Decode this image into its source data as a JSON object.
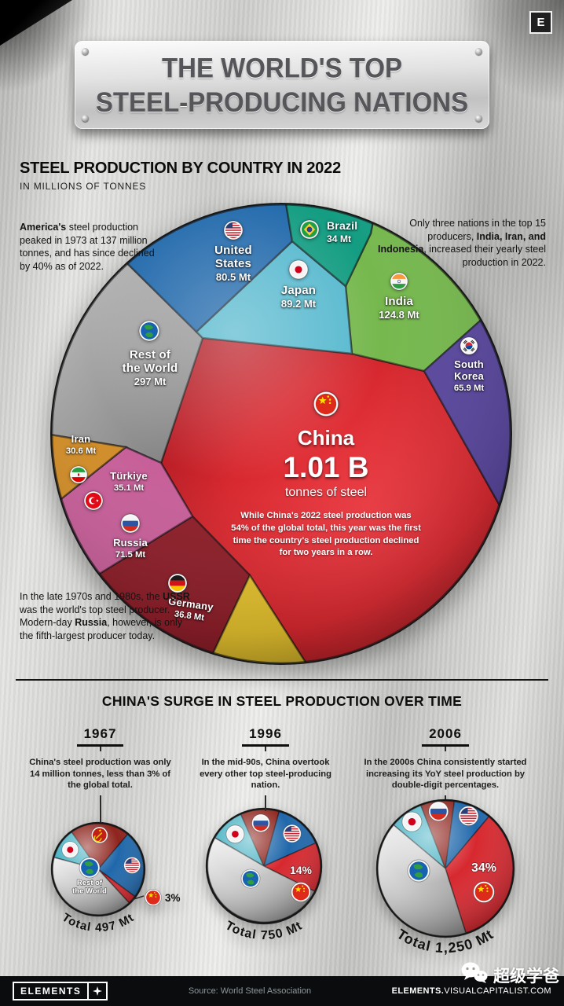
{
  "page": {
    "corner_logo": "E",
    "watermark": "超级学爸"
  },
  "title": {
    "line1": "THE WORLD'S TOP",
    "line2": "STEEL-PRODUCING NATIONS"
  },
  "section1": {
    "heading": "STEEL PRODUCTION BY COUNTRY IN 2022",
    "subheading": "IN MILLIONS OF TONNES",
    "note_america": {
      "bold": "America's",
      "rest": " steel production peaked in 1973 at 137 million tonnes, and has since declined by 40% as of 2022."
    },
    "note_top15": {
      "pre": "Only three nations in the top 15 producers, ",
      "bold": "India, Iran, and Indonesia",
      "post": ", increased their yearly steel production in 2022."
    },
    "note_ussr": {
      "p1": "In the late 1970s and 1980s, the ",
      "b1": "USSR",
      "p2": " was the world's top steel producer. Modern-day ",
      "b2": "Russia",
      "p3": ", however, is only the fifth-largest producer today."
    }
  },
  "china_focus": {
    "name": "China",
    "value": "1.01 B",
    "unit": "tonnes of steel",
    "note_lines": [
      "While China's 2022 steel production was",
      "54% of the global total, this year was the first",
      "time the country's steel production declined",
      "for two years in a row."
    ]
  },
  "chart_data": [
    {
      "type": "voronoi-circle-treemap",
      "title": "Steel production by country in 2022",
      "unit": "millions of tonnes",
      "countries": [
        {
          "name": "China",
          "display": [
            "China"
          ],
          "value": 1010,
          "value_label": "1.01 B",
          "color": "#d7282f",
          "flag": "china"
        },
        {
          "name": "Rest of the World",
          "display": [
            "Rest of",
            "the World"
          ],
          "value": 297,
          "value_label": "297 Mt",
          "color": "#a9a9a9",
          "flag": "globe"
        },
        {
          "name": "India",
          "display": [
            "India"
          ],
          "value": 124.8,
          "value_label": "124.8 Mt",
          "color": "#76b84e",
          "flag": "india"
        },
        {
          "name": "Japan",
          "display": [
            "Japan"
          ],
          "value": 89.2,
          "value_label": "89.2 Mt",
          "color": "#55b8ce",
          "flag": "japan"
        },
        {
          "name": "United States",
          "display": [
            "United",
            "States"
          ],
          "value": 80.5,
          "value_label": "80.5 Mt",
          "color": "#2068ab",
          "flag": "us"
        },
        {
          "name": "Russia",
          "display": [
            "Russia"
          ],
          "value": 71.5,
          "value_label": "71.5 Mt",
          "color": "#8c1e29",
          "flag": "russia"
        },
        {
          "name": "South Korea",
          "display": [
            "South",
            "Korea"
          ],
          "value": 65.9,
          "value_label": "65.9 Mt",
          "color": "#5a489e",
          "flag": "skorea"
        },
        {
          "name": "Germany",
          "display": [
            "Germany"
          ],
          "value": 36.8,
          "value_label": "36.8 Mt",
          "color": "#e2bf2d",
          "flag": "germany"
        },
        {
          "name": "Türkiye",
          "display": [
            "Türkiye"
          ],
          "value": 35.1,
          "value_label": "35.1 Mt",
          "color": "#c75f99",
          "flag": "turkiye"
        },
        {
          "name": "Brazil",
          "display": [
            "Brazil"
          ],
          "value": 34,
          "value_label": "34 Mt",
          "color": "#149d82",
          "flag": "brazil"
        },
        {
          "name": "Iran",
          "display": [
            "Iran"
          ],
          "value": 30.6,
          "value_label": "30.6 Mt",
          "color": "#d18d28",
          "flag": "iran"
        }
      ]
    },
    {
      "type": "pie",
      "year": "1967",
      "total_label": "Total 497 Mt",
      "start_angle": 285,
      "segments": [
        {
          "name": "Japan",
          "share": 11,
          "color": "#4fb5c6",
          "flag": "japan"
        },
        {
          "name": "USSR",
          "share": 21,
          "color": "#8e241d",
          "flag": "ussr"
        },
        {
          "name": "United States",
          "share": 24,
          "color": "#2068ab",
          "flag": "us"
        },
        {
          "name": "China",
          "share": 3,
          "color": "#d7282f",
          "flag": "china",
          "callout_label": "3%"
        },
        {
          "name": "Rest of the World",
          "share": 41,
          "color": "#b9b9b9",
          "flag": "globe",
          "label_lines": [
            "Rest of",
            "the World"
          ]
        }
      ]
    },
    {
      "type": "pie",
      "year": "1996",
      "total_label": "Total 750 Mt",
      "start_angle": 300,
      "segments": [
        {
          "name": "Japan",
          "share": 10,
          "color": "#4fb5c6",
          "flag": "japan"
        },
        {
          "name": "Russia",
          "share": 11,
          "color": "#8e241d",
          "flag": "russia"
        },
        {
          "name": "United States",
          "share": 14,
          "color": "#2068ab",
          "flag": "us"
        },
        {
          "name": "China",
          "share": 14,
          "color": "#d7282f",
          "flag": "china",
          "pct_label": "14%"
        },
        {
          "name": "Rest of the World",
          "share": 51,
          "color": "#b9b9b9",
          "flag": "globe"
        }
      ]
    },
    {
      "type": "pie",
      "year": "2006",
      "total_label": "Total 1,250 Mt",
      "start_angle": 310,
      "segments": [
        {
          "name": "Japan",
          "share": 8,
          "color": "#4fb5c6",
          "flag": "japan"
        },
        {
          "name": "Russia",
          "share": 8,
          "color": "#8e241d",
          "flag": "russia"
        },
        {
          "name": "United States",
          "share": 9,
          "color": "#2068ab",
          "flag": "us"
        },
        {
          "name": "China",
          "share": 34,
          "color": "#d7282f",
          "flag": "china",
          "pct_label": "34%"
        },
        {
          "name": "Rest of the World",
          "share": 41,
          "color": "#b9b9b9",
          "flag": "globe"
        }
      ]
    }
  ],
  "section2": {
    "heading_bold": "CHINA'S",
    "heading_rest": " SURGE IN STEEL PRODUCTION OVER TIME",
    "milestones": [
      {
        "year": "1967",
        "text": "China's steel production was only 14 million tonnes, less than 3% of the global total."
      },
      {
        "year": "1996",
        "text": "In the mid-90s, China overtook every other top steel-producing nation."
      },
      {
        "year": "2006",
        "text": "In the 2000s China consistently started increasing its YoY steel production by double-digit percentages."
      }
    ]
  },
  "footer": {
    "brand": "ELEMENTS",
    "source": "Source: World Steel Association",
    "site_bold": "ELEMENTS.",
    "site_rest": "VISUALCAPITALIST.COM"
  }
}
